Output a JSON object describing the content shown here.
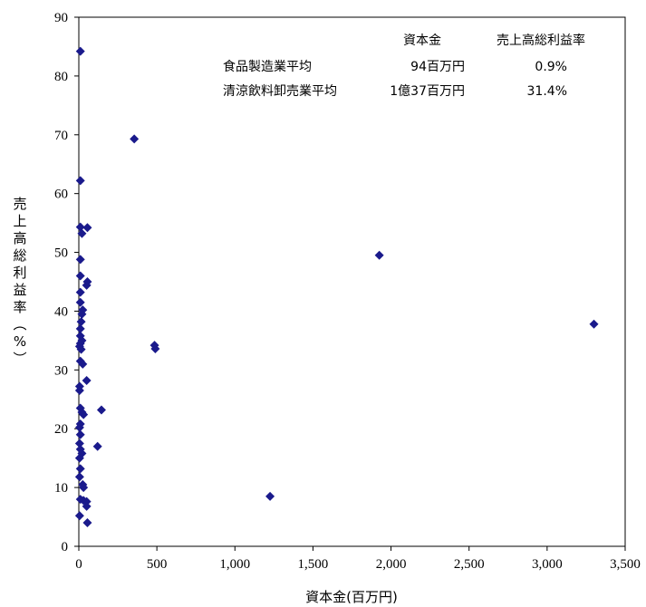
{
  "chart_data": {
    "type": "scatter",
    "title": "",
    "xlabel": "資本金(百万円)",
    "ylabel": "売上高総利益率(%)",
    "xlim": [
      0,
      3500
    ],
    "ylim": [
      0,
      90
    ],
    "x_ticks": [
      "0",
      "500",
      "1,000",
      "1,500",
      "2,000",
      "2,500",
      "3,000",
      "3,500"
    ],
    "y_ticks": [
      "0",
      "10",
      "20",
      "30",
      "40",
      "50",
      "60",
      "70",
      "80",
      "90"
    ],
    "grid": false,
    "marker": "diamond",
    "marker_color": "#1a1a8c",
    "points": [
      {
        "x": 10,
        "y": 84.2
      },
      {
        "x": 10,
        "y": 62.2
      },
      {
        "x": 10,
        "y": 54.3
      },
      {
        "x": 20,
        "y": 53.2
      },
      {
        "x": 55,
        "y": 54.2
      },
      {
        "x": 10,
        "y": 48.8
      },
      {
        "x": 10,
        "y": 46.0
      },
      {
        "x": 55,
        "y": 45.0
      },
      {
        "x": 50,
        "y": 44.4
      },
      {
        "x": 10,
        "y": 43.2
      },
      {
        "x": 10,
        "y": 41.5
      },
      {
        "x": 25,
        "y": 40.2
      },
      {
        "x": 20,
        "y": 39.5
      },
      {
        "x": 15,
        "y": 38.2
      },
      {
        "x": 10,
        "y": 37.0
      },
      {
        "x": 10,
        "y": 35.8
      },
      {
        "x": 20,
        "y": 35.0
      },
      {
        "x": 10,
        "y": 34.5
      },
      {
        "x": 5,
        "y": 34.0
      },
      {
        "x": 15,
        "y": 33.5
      },
      {
        "x": 10,
        "y": 31.5
      },
      {
        "x": 25,
        "y": 31.0
      },
      {
        "x": 50,
        "y": 28.2
      },
      {
        "x": 5,
        "y": 27.2
      },
      {
        "x": 5,
        "y": 26.5
      },
      {
        "x": 10,
        "y": 23.5
      },
      {
        "x": 20,
        "y": 22.8
      },
      {
        "x": 30,
        "y": 22.4
      },
      {
        "x": 10,
        "y": 20.8
      },
      {
        "x": 5,
        "y": 20.2
      },
      {
        "x": 10,
        "y": 19.0
      },
      {
        "x": 5,
        "y": 17.5
      },
      {
        "x": 10,
        "y": 16.5
      },
      {
        "x": 20,
        "y": 15.8
      },
      {
        "x": 5,
        "y": 15.0
      },
      {
        "x": 10,
        "y": 13.2
      },
      {
        "x": 5,
        "y": 11.8
      },
      {
        "x": 25,
        "y": 10.5
      },
      {
        "x": 30,
        "y": 10.0
      },
      {
        "x": 10,
        "y": 8.0
      },
      {
        "x": 30,
        "y": 7.8
      },
      {
        "x": 50,
        "y": 7.6
      },
      {
        "x": 50,
        "y": 6.8
      },
      {
        "x": 5,
        "y": 5.2
      },
      {
        "x": 55,
        "y": 4.0
      },
      {
        "x": 145,
        "y": 23.2
      },
      {
        "x": 120,
        "y": 17.0
      },
      {
        "x": 355,
        "y": 69.3
      },
      {
        "x": 485,
        "y": 34.2
      },
      {
        "x": 490,
        "y": 33.6
      },
      {
        "x": 1225,
        "y": 8.5
      },
      {
        "x": 1925,
        "y": 49.5
      },
      {
        "x": 3300,
        "y": 37.8
      }
    ]
  },
  "summary_table": {
    "columns": [
      "資本金",
      "売上高総利益率"
    ],
    "rows": [
      {
        "label": "食品製造業平均",
        "capital": "94百万円",
        "margin": "0.9%"
      },
      {
        "label": "清涼飲料卸売業平均",
        "capital": "1億37百万円",
        "margin": "31.4%"
      }
    ]
  }
}
